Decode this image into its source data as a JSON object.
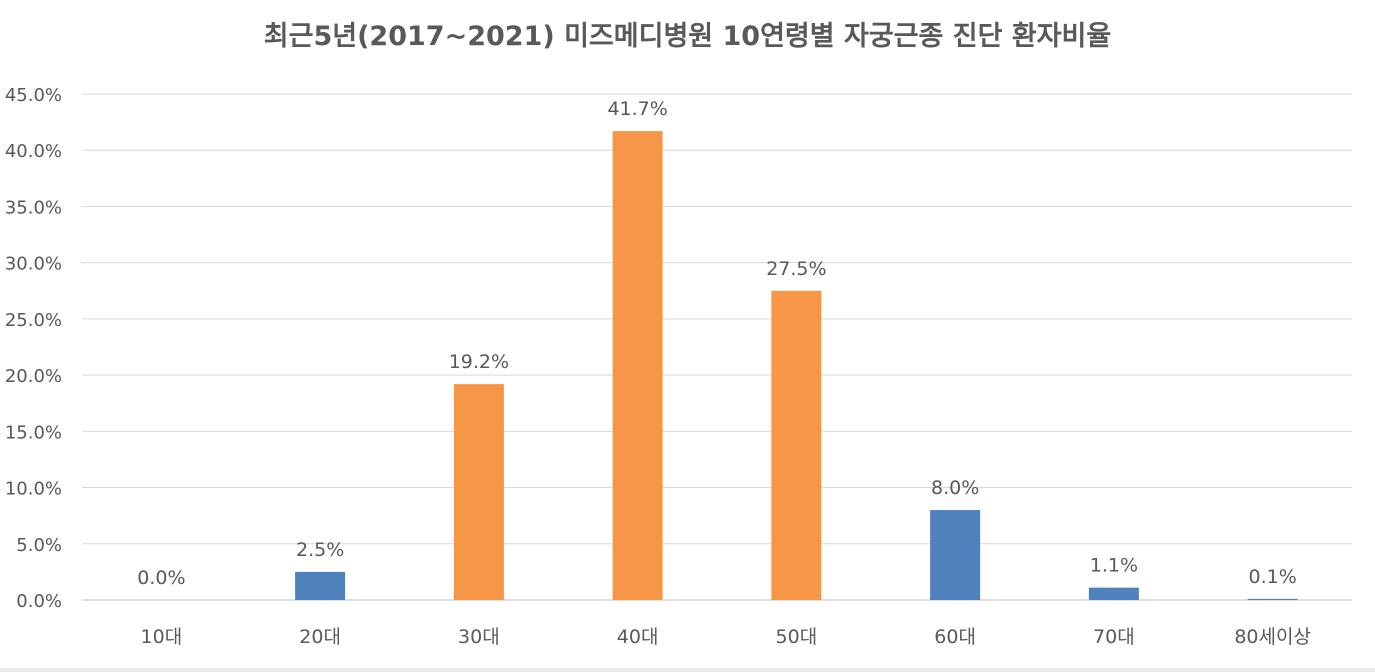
{
  "chart_data": {
    "type": "bar",
    "title": "최근5년(2017~2021) 미즈메디병원  10연령별 자궁근종 진단 환자비율",
    "xlabel": "",
    "ylabel": "",
    "categories": [
      "10대",
      "20대",
      "30대",
      "40대",
      "50대",
      "60대",
      "70대",
      "80세이상"
    ],
    "values": [
      0.0,
      2.5,
      19.2,
      41.7,
      27.5,
      8.0,
      1.1,
      0.1
    ],
    "data_labels": [
      "0.0%",
      "2.5%",
      "19.2%",
      "41.7%",
      "27.5%",
      "8.0%",
      "1.1%",
      "0.1%"
    ],
    "highlighted": [
      false,
      false,
      true,
      true,
      true,
      false,
      false,
      false
    ],
    "ylim": [
      0,
      45
    ],
    "yticks": [
      0,
      5,
      10,
      15,
      20,
      25,
      30,
      35,
      40,
      45
    ],
    "ytick_labels": [
      "0.0%",
      "5.0%",
      "10.0%",
      "15.0%",
      "20.0%",
      "25.0%",
      "30.0%",
      "35.0%",
      "40.0%",
      "45.0%"
    ],
    "grid": true,
    "legend": "none",
    "colors": {
      "default_bar": "#4f81bd",
      "highlight_bar": "#f79646",
      "grid": "#d9d9d9",
      "axis": "#bfbfbf",
      "text": "#595959"
    }
  }
}
